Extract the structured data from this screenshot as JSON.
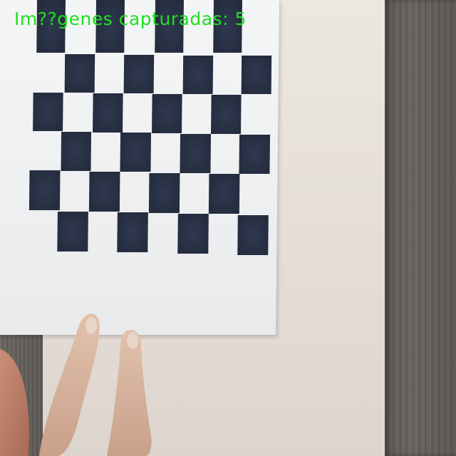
{
  "overlay": {
    "caption": "Im??genes capturadas: 5",
    "color": "#1fe01f"
  },
  "scene": {
    "checker_color": "#2b3347",
    "paper_color": "#f1f2f4"
  }
}
